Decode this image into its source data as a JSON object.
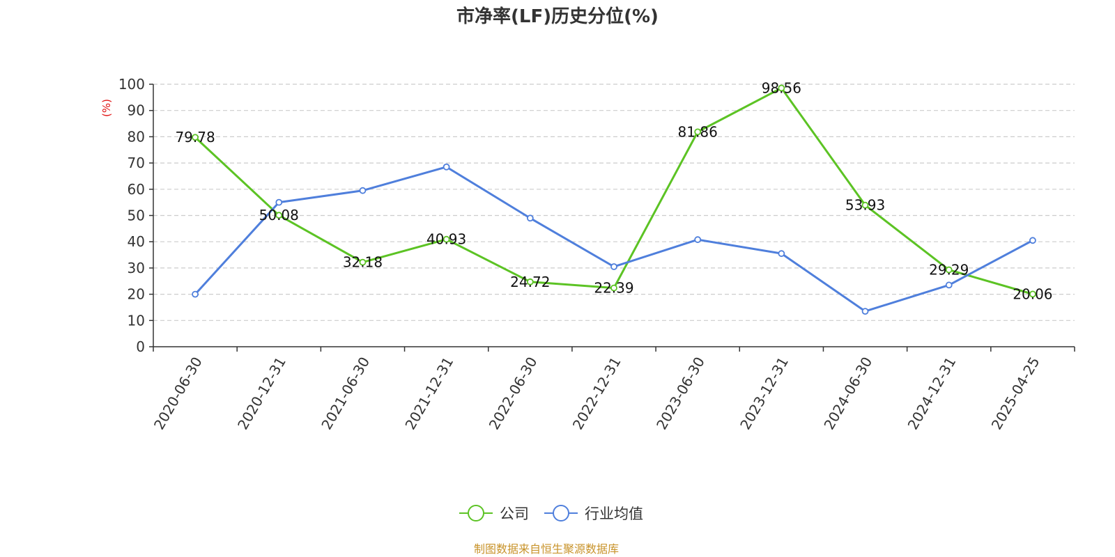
{
  "chart_data": {
    "type": "line",
    "title": "市净率(LF)历史分位(%)",
    "ylabel": "(%)",
    "xlabel": "",
    "ylim": [
      0,
      100
    ],
    "yticks": [
      0,
      10,
      20,
      30,
      40,
      50,
      60,
      70,
      80,
      90,
      100
    ],
    "grid": true,
    "legend_position": "bottom-center",
    "categories": [
      "2020-06-30",
      "2020-12-31",
      "2021-06-30",
      "2021-12-31",
      "2022-06-30",
      "2022-12-31",
      "2023-06-30",
      "2023-12-31",
      "2024-06-30",
      "2024-12-31",
      "2025-04-25"
    ],
    "series": [
      {
        "name": "公司",
        "color": "#5cc324",
        "values": [
          79.78,
          50.08,
          32.18,
          40.93,
          24.72,
          22.39,
          81.86,
          98.56,
          53.93,
          29.29,
          20.06
        ],
        "labels": [
          "79.78",
          "50.08",
          "32.18",
          "40.93",
          "24.72",
          "22.39",
          "81.86",
          "98.56",
          "53.93",
          "29.29",
          "20.06"
        ]
      },
      {
        "name": "行业均值",
        "color": "#4f7fdc",
        "values": [
          20,
          55,
          59.5,
          68.5,
          49,
          30.5,
          40.8,
          35.5,
          13.5,
          23.5,
          40.5
        ]
      }
    ]
  },
  "source": "制图数据来自恒生聚源数据库"
}
